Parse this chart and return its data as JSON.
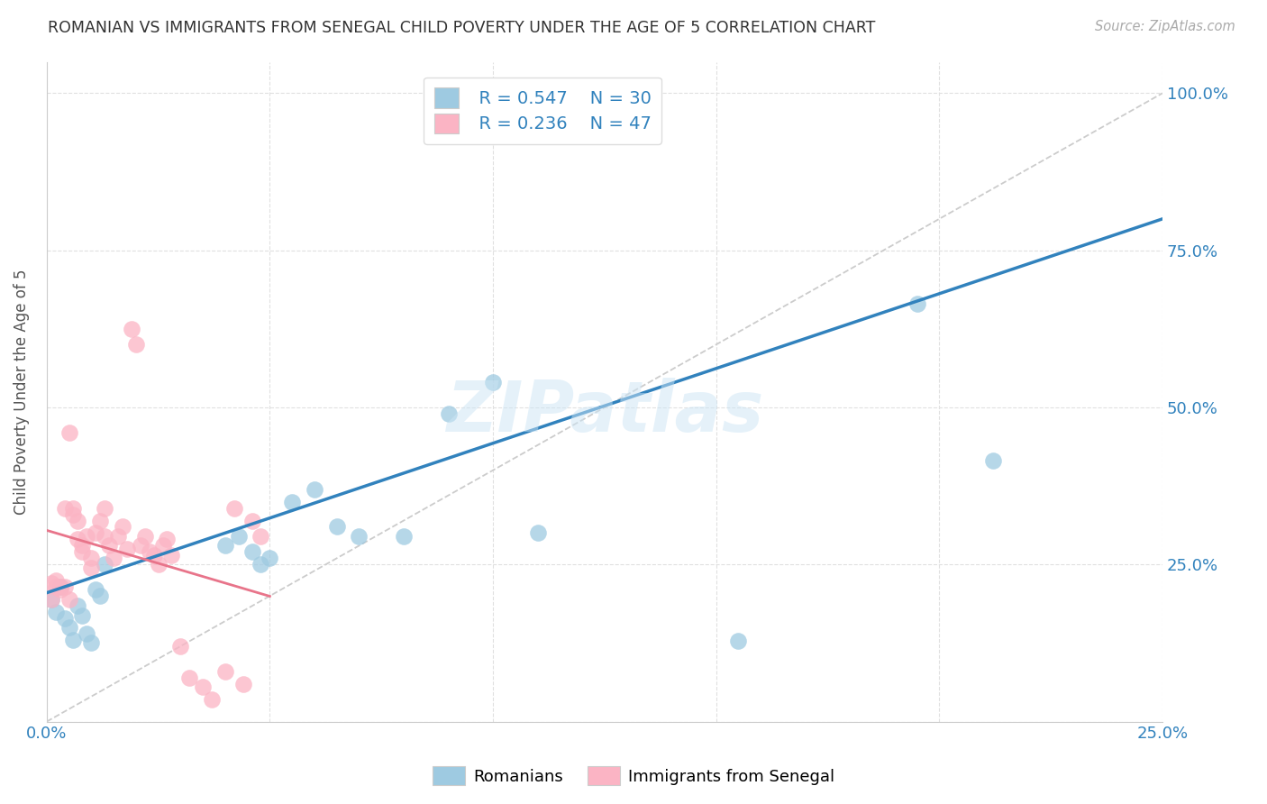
{
  "title": "ROMANIAN VS IMMIGRANTS FROM SENEGAL CHILD POVERTY UNDER THE AGE OF 5 CORRELATION CHART",
  "source": "Source: ZipAtlas.com",
  "ylabel": "Child Poverty Under the Age of 5",
  "xlim": [
    0.0,
    0.25
  ],
  "ylim": [
    0.0,
    1.05
  ],
  "xticks": [
    0.0,
    0.05,
    0.1,
    0.15,
    0.2,
    0.25
  ],
  "xtick_labels": [
    "0.0%",
    "",
    "",
    "",
    "",
    "25.0%"
  ],
  "yticks": [
    0.0,
    0.25,
    0.5,
    0.75,
    1.0
  ],
  "ytick_labels_right": [
    "",
    "25.0%",
    "50.0%",
    "75.0%",
    "100.0%"
  ],
  "watermark": "ZIPatlas",
  "legend_blue_R": "R = 0.547",
  "legend_blue_N": "N = 30",
  "legend_pink_R": "R = 0.236",
  "legend_pink_N": "N = 47",
  "blue_color": "#9ecae1",
  "pink_color": "#fbb4c4",
  "blue_line_color": "#3182bd",
  "pink_line_color": "#e8748a",
  "diagonal_color": "#cccccc",
  "blue_x": [
    0.001,
    0.002,
    0.003,
    0.004,
    0.005,
    0.006,
    0.007,
    0.008,
    0.009,
    0.01,
    0.011,
    0.012,
    0.013,
    0.04,
    0.043,
    0.046,
    0.048,
    0.05,
    0.055,
    0.06,
    0.065,
    0.07,
    0.08,
    0.09,
    0.1,
    0.11,
    0.13,
    0.155,
    0.195,
    0.212
  ],
  "blue_y": [
    0.195,
    0.175,
    0.215,
    0.165,
    0.15,
    0.13,
    0.185,
    0.168,
    0.14,
    0.125,
    0.21,
    0.2,
    0.25,
    0.28,
    0.295,
    0.27,
    0.25,
    0.26,
    0.35,
    0.37,
    0.31,
    0.295,
    0.295,
    0.49,
    0.54,
    0.3,
    0.96,
    0.128,
    0.665,
    0.415
  ],
  "pink_x": [
    0.001,
    0.001,
    0.002,
    0.002,
    0.003,
    0.003,
    0.004,
    0.004,
    0.005,
    0.005,
    0.006,
    0.006,
    0.007,
    0.007,
    0.008,
    0.008,
    0.009,
    0.01,
    0.01,
    0.011,
    0.012,
    0.013,
    0.013,
    0.014,
    0.015,
    0.016,
    0.017,
    0.018,
    0.019,
    0.02,
    0.021,
    0.022,
    0.023,
    0.024,
    0.025,
    0.026,
    0.027,
    0.028,
    0.03,
    0.032,
    0.035,
    0.037,
    0.04,
    0.042,
    0.044,
    0.046,
    0.048
  ],
  "pink_y": [
    0.22,
    0.195,
    0.215,
    0.225,
    0.215,
    0.21,
    0.215,
    0.34,
    0.46,
    0.195,
    0.33,
    0.34,
    0.32,
    0.29,
    0.28,
    0.27,
    0.295,
    0.26,
    0.245,
    0.3,
    0.32,
    0.295,
    0.34,
    0.28,
    0.26,
    0.295,
    0.31,
    0.275,
    0.625,
    0.6,
    0.28,
    0.295,
    0.27,
    0.265,
    0.25,
    0.28,
    0.29,
    0.265,
    0.12,
    0.07,
    0.055,
    0.035,
    0.08,
    0.34,
    0.06,
    0.32,
    0.295
  ],
  "blue_trend_x0": 0.0,
  "blue_trend_y0": 0.205,
  "blue_trend_x1": 0.25,
  "blue_trend_y1": 0.8,
  "pink_trend_x0": 0.0,
  "pink_trend_y0": 0.245,
  "pink_trend_x1": 0.05,
  "pink_trend_y1": 0.32
}
